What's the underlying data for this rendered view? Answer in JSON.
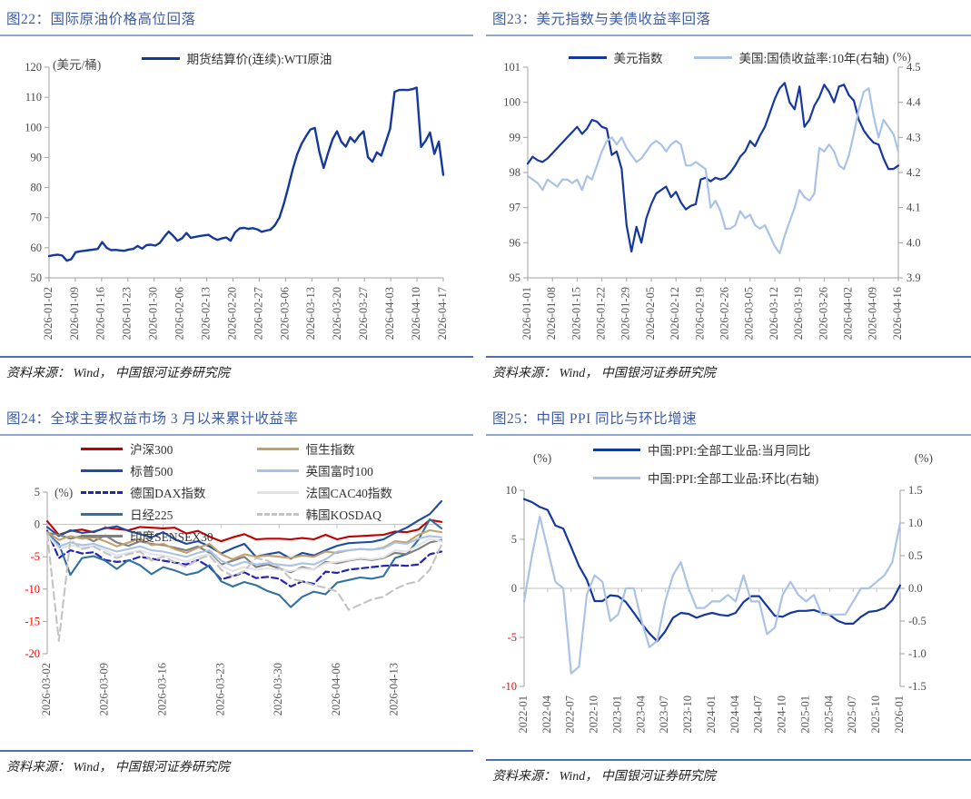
{
  "colors": {
    "title_blue": "#3D5CA6",
    "title_rule": "#8FA6CF",
    "bottom_rule": "#4C70B0",
    "axis_gray": "#A0A0A0",
    "tick_label": "#595959",
    "negative_red": "#FF0000",
    "navy": "#15389E",
    "light_blue": "#A9C2E6",
    "red": "#C00000"
  },
  "chart_data": [
    {
      "type": "line",
      "title": "图22：国际原油价格高位回落",
      "unit_left": "(美元/桶)",
      "source": "资料来源： Wind， 中国银河证券研究院",
      "legend_position": "top",
      "x_axis_at_zero": false,
      "x_tick_span": 1,
      "x_labels": [
        "2026-01-02",
        "2026-01-09",
        "2026-01-16",
        "2026-01-23",
        "2026-01-30",
        "2026-02-06",
        "2026-02-13",
        "2026-02-20",
        "2026-02-27",
        "2026-03-06",
        "2026-03-13",
        "2026-03-20",
        "2026-03-27",
        "2026-04-03",
        "2026-04-10",
        "2026-04-17"
      ],
      "left_axis": {
        "min": 50,
        "max": 120,
        "step": 10,
        "decimals": 0,
        "red_negative": false
      },
      "right_axis": null,
      "series": [
        {
          "name": "期货结算价(连续):WTI原油",
          "color": "#15389E",
          "width": 2.4,
          "dash": null,
          "axis": "left",
          "values": [
            57.2,
            57.5,
            57.7,
            57.4,
            55.7,
            56.2,
            58.5,
            58.8,
            59.0,
            59.2,
            59.4,
            59.6,
            61.9,
            60.0,
            59.2,
            59.3,
            59.1,
            59.0,
            59.4,
            59.6,
            60.6,
            59.7,
            60.9,
            61.0,
            60.7,
            61.6,
            63.6,
            65.4,
            64.0,
            62.3,
            63.1,
            64.9,
            63.3,
            63.6,
            63.9,
            64.1,
            64.3,
            63.3,
            62.6,
            63.1,
            63.4,
            62.3,
            65.1,
            66.4,
            66.6,
            66.3,
            66.5,
            66.1,
            65.3,
            65.7,
            66.0,
            67.5,
            70.0,
            74.5,
            80.0,
            86.0,
            91.0,
            94.5,
            97.0,
            99.3,
            99.8,
            92.0,
            86.5,
            91.5,
            96.0,
            98.7,
            95.2,
            93.6,
            96.7,
            95.1,
            97.2,
            98.7,
            90.1,
            88.6,
            91.7,
            90.6,
            95.0,
            99.5,
            111.8,
            112.4,
            112.5,
            112.4,
            112.7,
            113.2,
            93.5,
            95.5,
            98.3,
            91.2,
            95.3,
            84.2
          ]
        }
      ]
    },
    {
      "type": "line",
      "title": "图23：美元指数与美债收益率回落",
      "unit_right": "(%)",
      "source": "资料来源： Wind， 中国银河证券研究院",
      "legend_position": "top",
      "x_axis_at_zero": false,
      "x_tick_span": 1,
      "x_labels": [
        "2026-01-01",
        "2026-01-08",
        "2026-01-15",
        "2026-01-22",
        "2026-01-29",
        "2026-02-05",
        "2026-02-12",
        "2026-02-19",
        "2026-02-26",
        "2026-03-05",
        "2026-03-12",
        "2026-03-19",
        "2026-03-26",
        "2026-04-02",
        "2026-04-09",
        "2026-04-16"
      ],
      "left_axis": {
        "min": 95,
        "max": 101,
        "step": 1,
        "decimals": 0,
        "red_negative": false
      },
      "right_axis": {
        "min": 3.9,
        "max": 4.5,
        "step": 0.1,
        "decimals": 1,
        "red_negative": false
      },
      "series": [
        {
          "name": "美元指数",
          "color": "#15389E",
          "width": 2.2,
          "dash": null,
          "axis": "left",
          "values": [
            98.25,
            98.45,
            98.35,
            98.3,
            98.4,
            98.55,
            98.7,
            98.85,
            99.0,
            99.15,
            99.3,
            99.1,
            99.25,
            99.5,
            99.45,
            99.3,
            99.25,
            98.5,
            98.6,
            98.1,
            96.5,
            95.75,
            96.45,
            96.0,
            96.7,
            97.1,
            97.4,
            97.5,
            97.6,
            97.3,
            97.45,
            97.15,
            96.95,
            97.05,
            97.1,
            97.8,
            97.85,
            97.75,
            97.85,
            97.8,
            97.85,
            98.0,
            98.2,
            98.45,
            98.6,
            98.9,
            98.75,
            99.05,
            99.3,
            99.7,
            100.1,
            100.4,
            100.55,
            100.0,
            99.8,
            100.45,
            99.3,
            99.5,
            99.9,
            100.15,
            100.5,
            100.3,
            100.0,
            100.45,
            100.5,
            100.2,
            100.05,
            99.5,
            99.2,
            99.0,
            98.85,
            98.8,
            98.4,
            98.1,
            98.1,
            98.2
          ]
        },
        {
          "name": "美国:国债收益率:10年(右轴)",
          "color": "#A9C2E6",
          "width": 2.2,
          "dash": null,
          "axis": "right",
          "values": [
            4.19,
            4.18,
            4.17,
            4.15,
            4.18,
            4.17,
            4.16,
            4.18,
            4.18,
            4.17,
            4.18,
            4.15,
            4.19,
            4.18,
            4.22,
            4.26,
            4.29,
            4.3,
            4.28,
            4.3,
            4.27,
            4.25,
            4.23,
            4.24,
            4.26,
            4.28,
            4.29,
            4.28,
            4.26,
            4.28,
            4.29,
            4.28,
            4.22,
            4.22,
            4.23,
            4.22,
            4.21,
            4.1,
            4.12,
            4.09,
            4.04,
            4.04,
            4.05,
            4.09,
            4.07,
            4.08,
            4.05,
            4.04,
            4.05,
            4.02,
            3.99,
            3.97,
            4.02,
            4.06,
            4.1,
            4.15,
            4.13,
            4.12,
            4.14,
            4.27,
            4.26,
            4.28,
            4.26,
            4.22,
            4.21,
            4.25,
            4.31,
            4.38,
            4.43,
            4.44,
            4.36,
            4.3,
            4.35,
            4.33,
            4.31,
            4.26
          ]
        }
      ]
    },
    {
      "type": "line",
      "title": "图24：全球主要权益市场 3 月以来累计收益率",
      "unit_left": "(%)",
      "source": "资料来源： Wind， 中国银河证券研究院",
      "legend_position": "top",
      "legend_split": 5,
      "x_axis_at_zero": true,
      "x_tick_span": 0.882,
      "x_labels": [
        "2026-03-02",
        "2026-03-09",
        "2026-03-16",
        "2026-03-23",
        "2026-03-30",
        "2026-04-06",
        "2026-04-13"
      ],
      "left_axis": {
        "min": -20,
        "max": 5,
        "step": 5,
        "decimals": 0,
        "red_negative": true
      },
      "right_axis": null,
      "series": [
        {
          "name": "沪深300",
          "color": "#C00000",
          "width": 2.1,
          "dash": null,
          "axis": "left",
          "values": [
            0.5,
            -1.6,
            -1.0,
            -0.8,
            -1.2,
            -0.5,
            -0.7,
            -0.9,
            -0.4,
            -0.5,
            -0.6,
            -0.5,
            -1.4,
            -1.0,
            -1.9,
            -2.6,
            -2.0,
            -1.5,
            -2.3,
            -2.2,
            -2.2,
            -2.3,
            -2.1,
            -2.3,
            -1.6,
            -2.3,
            -1.9,
            -1.8,
            -1.7,
            -1.6,
            -1.1,
            -1.2,
            -0.8,
            0.7,
            0.4
          ]
        },
        {
          "name": "标普500",
          "color": "#1E4CA1",
          "width": 2.1,
          "dash": null,
          "axis": "left",
          "values": [
            -0.4,
            -1.8,
            -0.9,
            -1.3,
            -1.1,
            -0.6,
            -0.3,
            -1.0,
            -1.5,
            -2.0,
            -1.2,
            -2.3,
            -3.0,
            -2.6,
            -3.4,
            -4.5,
            -3.7,
            -3.0,
            -5.0,
            -4.6,
            -4.3,
            -5.3,
            -4.4,
            -4.8,
            -4.0,
            -3.3,
            -2.9,
            -2.8,
            -2.7,
            -2.3,
            -1.3,
            -0.5,
            0.6,
            1.6,
            3.6
          ]
        },
        {
          "name": "德国DAX指数",
          "color": "#2424B4",
          "width": 2.2,
          "dash": "7,4",
          "axis": "left",
          "values": [
            -1.0,
            -5.2,
            -4.0,
            -4.5,
            -4.3,
            -5.5,
            -5.8,
            -5.6,
            -5.0,
            -5.3,
            -5.6,
            -5.9,
            -6.2,
            -5.5,
            -6.6,
            -8.5,
            -8.0,
            -7.4,
            -8.3,
            -8.1,
            -8.4,
            -9.6,
            -8.8,
            -9.2,
            -7.3,
            -7.5,
            -7.0,
            -6.8,
            -6.6,
            -6.4,
            -6.3,
            -6.4,
            -6.2,
            -4.6,
            -4.2
          ]
        },
        {
          "name": "日经225",
          "color": "#31709F",
          "width": 2.1,
          "dash": null,
          "axis": "left",
          "values": [
            -1.4,
            -3.0,
            -7.8,
            -5.2,
            -4.9,
            -5.6,
            -6.9,
            -5.5,
            -6.3,
            -7.7,
            -6.6,
            -7.1,
            -7.8,
            -7.4,
            -6.3,
            -8.8,
            -9.6,
            -8.9,
            -9.4,
            -10.3,
            -10.9,
            -12.8,
            -11.2,
            -10.4,
            -10.8,
            -9.0,
            -8.6,
            -8.2,
            -8.4,
            -8.0,
            -5.2,
            -4.6,
            -2.4,
            0.8,
            -0.6
          ]
        },
        {
          "name": "印度SENSEX30",
          "color": "#7F7F7F",
          "width": 2.1,
          "dash": null,
          "axis": "left",
          "values": [
            -1.3,
            -1.6,
            -2.2,
            -1.8,
            -2.6,
            -1.7,
            -2.8,
            -3.3,
            -2.6,
            -3.0,
            -3.2,
            -3.6,
            -4.0,
            -3.4,
            -4.4,
            -6.2,
            -5.6,
            -5.0,
            -6.6,
            -6.2,
            -6.8,
            -7.4,
            -6.6,
            -7.0,
            -5.8,
            -6.0,
            -5.6,
            -5.3,
            -5.5,
            -5.2,
            -4.4,
            -4.6,
            -3.8,
            -2.8,
            -2.4
          ]
        },
        {
          "name": "恒生指数",
          "color": "#C2A06B",
          "width": 2.1,
          "dash": null,
          "axis": "left",
          "values": [
            -1.2,
            -2.4,
            -1.8,
            -2.2,
            -2.0,
            -2.6,
            -3.4,
            -2.8,
            -2.2,
            -3.2,
            -3.0,
            -3.8,
            -4.4,
            -3.6,
            -3.0,
            -4.6,
            -5.4,
            -4.6,
            -5.0,
            -4.8,
            -5.0,
            -5.2,
            -4.8,
            -5.0,
            -4.2,
            -4.4,
            -4.0,
            -3.8,
            -3.9,
            -3.6,
            -2.6,
            -2.8,
            -1.6,
            -0.9,
            -1.2
          ]
        },
        {
          "name": "英国富时100",
          "color": "#A9C2E6",
          "width": 2.1,
          "dash": null,
          "axis": "left",
          "values": [
            -1.5,
            -3.4,
            -2.8,
            -3.2,
            -3.0,
            -3.6,
            -4.2,
            -3.8,
            -3.4,
            -4.0,
            -4.2,
            -4.6,
            -5.0,
            -4.4,
            -4.0,
            -5.6,
            -6.4,
            -5.8,
            -6.2,
            -6.0,
            -6.2,
            -6.4,
            -6.0,
            -6.2,
            -5.4,
            -4.2,
            -4.0,
            -3.8,
            -3.9,
            -3.7,
            -2.8,
            -3.0,
            -2.2,
            -1.8,
            -2.0
          ]
        },
        {
          "name": "法国CAC40指数",
          "color": "#E3E3E3",
          "width": 2.1,
          "dash": null,
          "axis": "left",
          "values": [
            -1.6,
            -3.8,
            -3.2,
            -3.6,
            -3.4,
            -4.0,
            -4.8,
            -4.4,
            -4.0,
            -4.6,
            -4.8,
            -5.2,
            -5.8,
            -5.0,
            -4.6,
            -6.4,
            -7.2,
            -6.6,
            -7.0,
            -6.8,
            -7.0,
            -7.2,
            -6.8,
            -7.0,
            -6.0,
            -5.8,
            -5.5,
            -5.2,
            -5.4,
            -5.1,
            -4.0,
            -4.2,
            -3.2,
            -2.2,
            -2.6
          ]
        },
        {
          "name": "韩国KOSDAQ",
          "color": "#C3C3C3",
          "width": 2.1,
          "dash": "8,5",
          "axis": "left",
          "values": [
            -1.4,
            -18.0,
            -2.4,
            -3.8,
            -3.4,
            -4.4,
            -5.2,
            -4.6,
            -4.2,
            -5.6,
            -5.0,
            -5.8,
            -6.6,
            -5.4,
            -4.8,
            -7.0,
            -8.0,
            -7.2,
            -5.2,
            -5.6,
            -6.6,
            -8.4,
            -8.8,
            -9.4,
            -9.8,
            -10.4,
            -13.2,
            -12.4,
            -11.6,
            -11.2,
            -10.0,
            -9.2,
            -8.8,
            -7.0,
            -3.2
          ]
        }
      ]
    },
    {
      "type": "line",
      "title": "图25：中国 PPI 同比与环比增速",
      "unit_left": "(%)",
      "unit_right": "(%)",
      "source": "资料来源： Wind， 中国银河证券研究院",
      "legend_position": "top",
      "x_axis_at_zero": true,
      "x_tick_span": 1,
      "x_labels": [
        "2022-01",
        "2022-04",
        "2022-07",
        "2022-10",
        "2023-01",
        "2023-04",
        "2023-07",
        "2023-10",
        "2024-01",
        "2024-04",
        "2024-07",
        "2024-10",
        "2025-01",
        "2025-04",
        "2025-07",
        "2025-10",
        "2026-01"
      ],
      "left_axis": {
        "min": -10,
        "max": 10,
        "step": 5,
        "decimals": 0,
        "red_negative": true
      },
      "right_axis": {
        "min": -1.5,
        "max": 1.5,
        "step": 0.5,
        "decimals": 1,
        "red_negative": false
      },
      "series": [
        {
          "name": "中国:PPI:全部工业品:当月同比",
          "color": "#15389E",
          "width": 2.2,
          "dash": null,
          "axis": "left",
          "values": [
            9.1,
            8.8,
            8.3,
            8.0,
            6.4,
            6.1,
            4.2,
            2.3,
            0.9,
            -1.3,
            -1.3,
            -0.7,
            -0.8,
            -1.4,
            -2.5,
            -3.6,
            -4.6,
            -5.4,
            -4.4,
            -3.0,
            -2.5,
            -2.6,
            -3.0,
            -2.7,
            -2.5,
            -2.7,
            -2.8,
            -2.5,
            -1.4,
            -0.8,
            -0.8,
            -1.8,
            -2.8,
            -2.9,
            -2.5,
            -2.3,
            -2.3,
            -2.2,
            -2.5,
            -2.7,
            -3.3,
            -3.6,
            -3.6,
            -2.9,
            -2.4,
            -2.3,
            -2.0,
            -1.2,
            0.3
          ]
        },
        {
          "name": "中国:PPI:全部工业品:环比(右轴)",
          "color": "#A9C2E6",
          "width": 2.2,
          "dash": null,
          "axis": "right",
          "values": [
            -0.2,
            0.5,
            1.1,
            0.6,
            0.1,
            0.0,
            -1.3,
            -1.2,
            -0.1,
            0.2,
            0.1,
            -0.5,
            -0.4,
            0.0,
            0.0,
            -0.5,
            -0.9,
            -0.8,
            -0.2,
            0.2,
            0.4,
            0.0,
            -0.3,
            -0.3,
            -0.2,
            -0.2,
            -0.1,
            -0.2,
            0.2,
            -0.2,
            -0.2,
            -0.7,
            -0.6,
            -0.1,
            0.1,
            -0.1,
            -0.2,
            -0.1,
            -0.4,
            -0.4,
            -0.4,
            -0.4,
            -0.2,
            0.0,
            0.0,
            0.1,
            0.2,
            0.4,
            1.0
          ]
        }
      ]
    }
  ]
}
